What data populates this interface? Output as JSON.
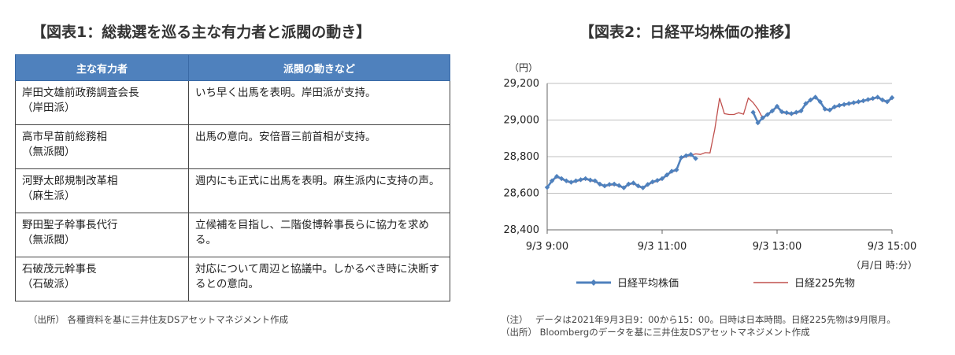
{
  "figure1": {
    "title": "【図表1：総裁選を巡る主な有力者と派閥の動き】",
    "headers": [
      "主な有力者",
      "派閥の動きなど"
    ],
    "rows": [
      {
        "name": "岸田文雄前政務調査会長",
        "faction": "（岸田派）",
        "action": "いち早く出馬を表明。岸田派が支持。"
      },
      {
        "name": "高市早苗前総務相",
        "faction": "（無派閥）",
        "action": "出馬の意向。安倍晋三前首相が支持。"
      },
      {
        "name": "河野太郎規制改革相",
        "faction": "（麻生派）",
        "action": "週内にも正式に出馬を表明。麻生派内に支持の声。"
      },
      {
        "name": "野田聖子幹事長代行",
        "faction": "（無派閥）",
        "action": "立候補を目指し、二階俊博幹事長らに協力を求める。"
      },
      {
        "name": "石破茂元幹事長",
        "faction": "（石破派）",
        "action": "対応について周辺と協議中。しかるべき時に決断するとの意向。"
      }
    ],
    "source": "（出所） 各種資料を基に三井住友DSアセットマネジメント作成"
  },
  "figure2": {
    "title": "【図表2：日経平均株価の推移】",
    "note": "（注）　 データは2021年9月3日9：00から15：00。日時は日本時間。日経225先物は9月限月。",
    "source": "（出所） Bloombergのデータを基に三井住友DSアセットマネジメント作成"
  },
  "chart_data": {
    "type": "line",
    "y_unit_label": "（円）",
    "x_unit_label": "（月/日 時:分）",
    "ylim": [
      28400,
      29200
    ],
    "yticks": [
      28400,
      28600,
      28800,
      29000,
      29200
    ],
    "ytick_labels": [
      "28,400",
      "28,600",
      "28,800",
      "29,000",
      "29,200"
    ],
    "xlim": [
      0,
      360
    ],
    "xticks": [
      0,
      120,
      240,
      360
    ],
    "xtick_labels": [
      "9/3 9:00",
      "9/3 11:00",
      "9/3 13:00",
      "9/3 15:00"
    ],
    "x_meaning": "minutes after 9/3 9:00",
    "grid": true,
    "legend_position": "bottom",
    "series": [
      {
        "name": "日経平均株価",
        "color": "#4f81bd",
        "marker": "diamond",
        "segments": [
          [
            [
              0,
              28632
            ],
            [
              5,
              28668
            ],
            [
              10,
              28692
            ],
            [
              15,
              28680
            ],
            [
              20,
              28668
            ],
            [
              25,
              28660
            ],
            [
              30,
              28668
            ],
            [
              35,
              28674
            ],
            [
              40,
              28680
            ],
            [
              45,
              28672
            ],
            [
              50,
              28668
            ],
            [
              55,
              28650
            ],
            [
              60,
              28640
            ],
            [
              65,
              28648
            ],
            [
              70,
              28650
            ],
            [
              75,
              28642
            ],
            [
              80,
              28630
            ],
            [
              85,
              28650
            ],
            [
              90,
              28656
            ],
            [
              95,
              28640
            ],
            [
              100,
              28630
            ],
            [
              105,
              28648
            ],
            [
              110,
              28662
            ],
            [
              115,
              28670
            ],
            [
              120,
              28680
            ],
            [
              125,
              28700
            ],
            [
              130,
              28720
            ],
            [
              135,
              28728
            ],
            [
              140,
              28795
            ],
            [
              145,
              28805
            ],
            [
              150,
              28812
            ],
            [
              155,
              28790
            ]
          ],
          [
            [
              215,
              29042
            ],
            [
              220,
              28985
            ],
            [
              225,
              29012
            ],
            [
              230,
              29030
            ],
            [
              235,
              29050
            ],
            [
              240,
              29075
            ],
            [
              245,
              29045
            ],
            [
              250,
              29040
            ],
            [
              255,
              29035
            ],
            [
              260,
              29042
            ],
            [
              265,
              29050
            ],
            [
              270,
              29090
            ],
            [
              275,
              29110
            ],
            [
              280,
              29125
            ],
            [
              285,
              29100
            ],
            [
              290,
              29060
            ],
            [
              295,
              29055
            ],
            [
              300,
              29072
            ],
            [
              305,
              29080
            ],
            [
              310,
              29085
            ],
            [
              315,
              29090
            ],
            [
              320,
              29095
            ],
            [
              325,
              29100
            ],
            [
              330,
              29105
            ],
            [
              335,
              29112
            ],
            [
              340,
              29118
            ],
            [
              345,
              29125
            ],
            [
              350,
              29110
            ],
            [
              355,
              29100
            ],
            [
              360,
              29122
            ]
          ]
        ]
      },
      {
        "name": "日経225先物",
        "color": "#c0504d",
        "marker": "none",
        "segments": [
          [
            [
              0,
              28630
            ],
            [
              5,
              28665
            ],
            [
              10,
              28688
            ],
            [
              15,
              28676
            ],
            [
              20,
              28664
            ],
            [
              25,
              28656
            ],
            [
              30,
              28664
            ],
            [
              35,
              28670
            ],
            [
              40,
              28676
            ],
            [
              45,
              28668
            ],
            [
              50,
              28664
            ],
            [
              55,
              28646
            ],
            [
              60,
              28636
            ],
            [
              65,
              28644
            ],
            [
              70,
              28646
            ],
            [
              75,
              28638
            ],
            [
              80,
              28626
            ],
            [
              85,
              28646
            ],
            [
              90,
              28652
            ],
            [
              95,
              28636
            ],
            [
              100,
              28626
            ],
            [
              105,
              28644
            ],
            [
              110,
              28658
            ],
            [
              115,
              28666
            ],
            [
              120,
              28676
            ],
            [
              125,
              28696
            ],
            [
              130,
              28716
            ],
            [
              135,
              28724
            ],
            [
              140,
              28790
            ],
            [
              145,
              28800
            ],
            [
              150,
              28808
            ],
            [
              155,
              28815
            ],
            [
              160,
              28812
            ],
            [
              165,
              28822
            ],
            [
              170,
              28820
            ],
            [
              175,
              28950
            ],
            [
              180,
              29120
            ],
            [
              185,
              29035
            ],
            [
              190,
              29030
            ],
            [
              195,
              29030
            ],
            [
              200,
              29040
            ],
            [
              205,
              29032
            ],
            [
              210,
              29120
            ],
            [
              215,
              29095
            ],
            [
              220,
              29060
            ],
            [
              225,
              29010
            ],
            [
              230,
              29028
            ],
            [
              235,
              29046
            ],
            [
              240,
              29070
            ],
            [
              245,
              29040
            ],
            [
              250,
              29036
            ],
            [
              255,
              29030
            ],
            [
              260,
              29038
            ],
            [
              265,
              29046
            ],
            [
              270,
              29086
            ],
            [
              275,
              29106
            ],
            [
              280,
              29122
            ],
            [
              285,
              29096
            ],
            [
              290,
              29056
            ],
            [
              295,
              29052
            ],
            [
              300,
              29068
            ],
            [
              305,
              29076
            ],
            [
              310,
              29082
            ],
            [
              315,
              29086
            ],
            [
              320,
              29092
            ],
            [
              325,
              29096
            ],
            [
              330,
              29102
            ],
            [
              335,
              29108
            ],
            [
              340,
              29114
            ],
            [
              345,
              29122
            ],
            [
              350,
              29106
            ],
            [
              355,
              29096
            ],
            [
              360,
              29118
            ]
          ]
        ]
      }
    ]
  }
}
